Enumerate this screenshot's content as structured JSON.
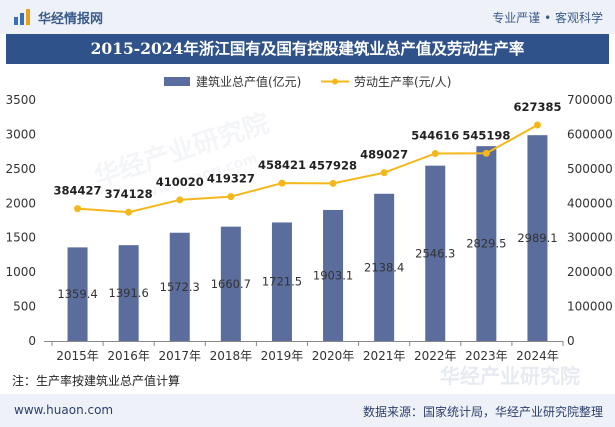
{
  "header": {
    "brand": "华经情报网",
    "motto": "专业严谨 • 客观科学"
  },
  "title": "2015-2024年浙江国有及国有控股建筑业总产值及劳动生产率",
  "note": "注：生产率按建筑业总产值计算",
  "footer": {
    "site": "www.huaon.com",
    "source": "数据来源：国家统计局，华经产业研究院整理"
  },
  "watermark": {
    "cn": "华经产业研究院",
    "en": "www.huaon.com"
  },
  "colors": {
    "bar": "#5b6d9c",
    "line": "#f5b81c",
    "title_bg": "#2e5289"
  },
  "chart_data": {
    "type": "bar",
    "categories": [
      "2015年",
      "2016年",
      "2017年",
      "2018年",
      "2019年",
      "2020年",
      "2021年",
      "2022年",
      "2023年",
      "2024年"
    ],
    "series": [
      {
        "name": "建筑业总产值(亿元)",
        "type": "bar",
        "axis": "left",
        "values": [
          1359.4,
          1391.6,
          1572.3,
          1660.7,
          1721.5,
          1903.1,
          2138.4,
          2546.3,
          2829.5,
          2989.1
        ],
        "labels": [
          "1359.4",
          "1391.6",
          "1572.3",
          "1660.7",
          "1721.5",
          "1903.1",
          "2138.4",
          "2546.3",
          "2829.5",
          "2989.1"
        ]
      },
      {
        "name": "劳动生产率(元/人)",
        "type": "line",
        "axis": "right",
        "values": [
          384427,
          374128,
          410020,
          419327,
          458421,
          457928,
          489027,
          544616,
          545198,
          627385
        ],
        "labels": [
          "384427",
          "374128",
          "410020",
          "419327",
          "458421",
          "457928",
          "489027",
          "544616",
          "545198",
          "627385"
        ]
      }
    ],
    "yleft": {
      "range": [
        0,
        3500
      ],
      "ticks": [
        "0",
        "500",
        "1000",
        "1500",
        "2000",
        "2500",
        "3000",
        "3500"
      ]
    },
    "yright": {
      "range": [
        0,
        700000
      ],
      "ticks": [
        "0",
        "100000",
        "200000",
        "300000",
        "400000",
        "500000",
        "600000",
        "700000"
      ]
    },
    "legend_position": "top-center"
  }
}
